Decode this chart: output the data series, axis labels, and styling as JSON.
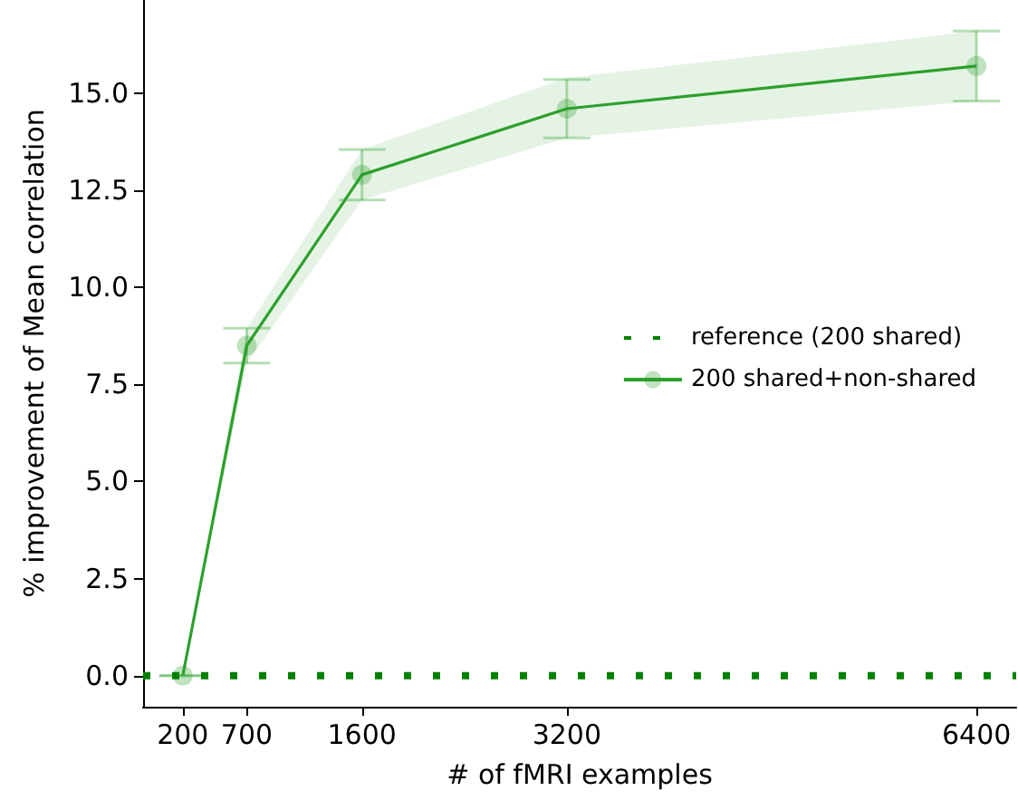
{
  "chart_data": {
    "type": "line",
    "xlabel": "# of fMRI examples",
    "ylabel": "% improvement of Mean correlation",
    "series": [
      {
        "name": "reference (200 shared)",
        "color": "#008000",
        "x": [
          -110,
          6710
        ],
        "values": [
          0,
          0
        ],
        "marker": "none",
        "line_style": "dotted"
      },
      {
        "name": "200 shared+non-shared",
        "color": "#2ca02c",
        "x": [
          200,
          700,
          1600,
          3200,
          6400
        ],
        "values": [
          0,
          8.5,
          12.9,
          14.6,
          15.7
        ],
        "errors": [
          0,
          0.45,
          0.65,
          0.75,
          0.9
        ],
        "lower": [
          0,
          8.05,
          12.25,
          13.85,
          14.8
        ],
        "upper": [
          0,
          8.95,
          13.55,
          15.4,
          16.6
        ],
        "marker": "circle",
        "line_style": "solid"
      }
    ],
    "xlim": [
      -110,
      6710
    ],
    "ylim": [
      -0.8,
      17.4
    ],
    "xticks": [
      200,
      700,
      1600,
      3200,
      6400
    ],
    "yticks": [
      {
        "value": 0,
        "label": "0.0"
      },
      {
        "value": 2.5,
        "label": "2.5"
      },
      {
        "value": 5,
        "label": "5.0"
      },
      {
        "value": 7.5,
        "label": "7.5"
      },
      {
        "value": 10,
        "label": "10.0"
      },
      {
        "value": 12.5,
        "label": "12.5"
      },
      {
        "value": 15,
        "label": "15.0"
      }
    ],
    "grid": false,
    "legend": "right"
  }
}
